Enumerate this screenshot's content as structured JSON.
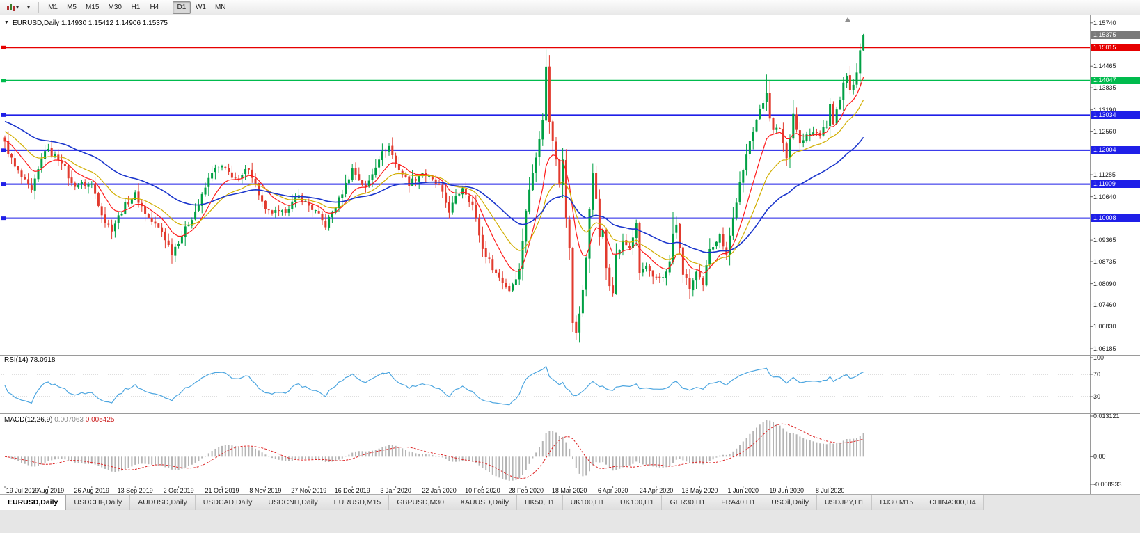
{
  "toolbar": {
    "timeframes": [
      "M1",
      "M5",
      "M15",
      "M30",
      "H1",
      "H4",
      "D1",
      "W1",
      "MN"
    ],
    "active_timeframe": "D1",
    "dropdown_caret": "▾"
  },
  "main_chart": {
    "collapse_glyph": "▼",
    "title": "EURUSD,Daily 1.14930 1.15412 1.14906 1.15375"
  },
  "rsi_panel": {
    "title": "RSI(14) 78.0918",
    "scale": [
      {
        "v": 100,
        "label": "100"
      },
      {
        "v": 70,
        "label": "70"
      },
      {
        "v": 30,
        "label": "30"
      }
    ]
  },
  "macd_panel": {
    "title_name": "MACD(12,26,9)",
    "main_value": "0.007063",
    "signal_value": "0.005425",
    "scale": [
      {
        "v": 0.013121,
        "label": "0.013121"
      },
      {
        "v": 0,
        "label": "0.00"
      },
      {
        "v": -0.008933,
        "label": "-0.008933"
      }
    ]
  },
  "price_scale": {
    "ticks": [
      "1.15740",
      "1.14465",
      "1.13835",
      "1.13190",
      "1.12560",
      "1.11285",
      "1.10640",
      "1.09365",
      "1.08735",
      "1.08090",
      "1.07460",
      "1.06830",
      "1.06185"
    ],
    "last_price_badge": {
      "label": "1.15375",
      "price": 1.15375,
      "color": "#7a7a7a"
    }
  },
  "hlines": [
    {
      "price": 1.15015,
      "color": "#e60000",
      "label": "1.15015"
    },
    {
      "price": 1.14047,
      "color": "#00bb4d",
      "label": "1.14047"
    },
    {
      "price": 1.13034,
      "color": "#1f1fe8",
      "label": "1.13034"
    },
    {
      "price": 1.12004,
      "color": "#1f1fe8",
      "label": "1.12004"
    },
    {
      "price": 1.11009,
      "color": "#1f1fe8",
      "label": "1.11009"
    },
    {
      "price": 1.10008,
      "color": "#1f1fe8",
      "label": "1.10008"
    }
  ],
  "time_axis": {
    "labels": [
      "19 Jul 2019",
      "7 Aug 2019",
      "26 Aug 2019",
      "13 Sep 2019",
      "2 Oct 2019",
      "21 Oct 2019",
      "8 Nov 2019",
      "27 Nov 2019",
      "16 Dec 2019",
      "3 Jan 2020",
      "22 Jan 2020",
      "10 Feb 2020",
      "28 Feb 2020",
      "18 Mar 2020",
      "6 Apr 2020",
      "24 Apr 2020",
      "13 May 2020",
      "1 Jun 2020",
      "19 Jun 2020",
      "8 Jul 2020"
    ],
    "candles_per_label": 13
  },
  "tabs": {
    "active": "EURUSD,Daily",
    "items": [
      "EURUSD,Daily",
      "USDCHF,Daily",
      "AUDUSD,Daily",
      "USDCAD,Daily",
      "USDCNH,Daily",
      "EURUSD,M15",
      "GBPUSD,M30",
      "XAUUSD,Daily",
      "HK50,H1",
      "UK100,H1",
      "UK100,H1",
      "GER30,H1",
      "FRA40,H1",
      "USOil,Daily",
      "USDJPY,H1",
      "DJ30,M15",
      "CHINA300,H4"
    ],
    "note": ""
  },
  "chart_data": {
    "type": "candlestick",
    "symbol": "EURUSD",
    "period": "Daily",
    "ylim": [
      1.06,
      1.1596
    ],
    "candle_count": 258,
    "last_ohlc": {
      "o": 1.1493,
      "h": 1.15412,
      "l": 1.14906,
      "c": 1.15375
    },
    "up_color": "#00a044",
    "down_color": "#e23a2e",
    "close_anchors": [
      [
        0,
        1.122
      ],
      [
        3,
        1.115
      ],
      [
        8,
        1.1078
      ],
      [
        12,
        1.1203
      ],
      [
        17,
        1.117
      ],
      [
        20,
        1.11
      ],
      [
        26,
        1.11
      ],
      [
        30,
        1.099
      ],
      [
        32,
        1.097
      ],
      [
        36,
        1.104
      ],
      [
        39,
        1.107
      ],
      [
        43,
        1.1
      ],
      [
        47,
        1.0962
      ],
      [
        50,
        1.09
      ],
      [
        52,
        1.0935
      ],
      [
        55,
        1.0985
      ],
      [
        58,
        1.104
      ],
      [
        62,
        1.114
      ],
      [
        65,
        1.115
      ],
      [
        70,
        1.111
      ],
      [
        73,
        1.1152
      ],
      [
        78,
        1.102
      ],
      [
        83,
        1.1015
      ],
      [
        88,
        1.1065
      ],
      [
        93,
        1.102
      ],
      [
        96,
        1.098
      ],
      [
        100,
        1.1055
      ],
      [
        104,
        1.1145
      ],
      [
        108,
        1.1087
      ],
      [
        112,
        1.118
      ],
      [
        115,
        1.1212
      ],
      [
        117,
        1.116
      ],
      [
        121,
        1.1103
      ],
      [
        125,
        1.1135
      ],
      [
        130,
        1.1093
      ],
      [
        133,
        1.1023
      ],
      [
        137,
        1.1093
      ],
      [
        140,
        1.104
      ],
      [
        143,
        1.091
      ],
      [
        147,
        1.084
      ],
      [
        151,
        1.079
      ],
      [
        154,
        1.085
      ],
      [
        156,
        1.1026
      ],
      [
        158,
        1.1135
      ],
      [
        160,
        1.124
      ],
      [
        161,
        1.1284
      ],
      [
        162,
        1.145
      ],
      [
        163,
        1.128
      ],
      [
        165,
        1.118
      ],
      [
        166,
        1.1106
      ],
      [
        167,
        1.118
      ],
      [
        168,
        1.0995
      ],
      [
        169,
        1.0915
      ],
      [
        170,
        1.069
      ],
      [
        171,
        1.0665
      ],
      [
        172,
        1.0725
      ],
      [
        173,
        1.079
      ],
      [
        174,
        1.088
      ],
      [
        175,
        1.103
      ],
      [
        176,
        1.114
      ],
      [
        177,
        1.105
      ],
      [
        178,
        1.095
      ],
      [
        179,
        1.096
      ],
      [
        180,
        1.0855
      ],
      [
        181,
        1.081
      ],
      [
        182,
        1.079
      ],
      [
        183,
        1.089
      ],
      [
        185,
        1.093
      ],
      [
        187,
        1.0915
      ],
      [
        189,
        1.098
      ],
      [
        190,
        1.084
      ],
      [
        192,
        1.086
      ],
      [
        194,
        1.0822
      ],
      [
        195,
        1.082
      ],
      [
        197,
        1.083
      ],
      [
        199,
        1.087
      ],
      [
        200,
        1.0955
      ],
      [
        201,
        1.098
      ],
      [
        203,
        1.084
      ],
      [
        205,
        1.0795
      ],
      [
        207,
        1.084
      ],
      [
        209,
        1.08
      ],
      [
        211,
        1.0915
      ],
      [
        212,
        1.0924
      ],
      [
        214,
        1.095
      ],
      [
        216,
        1.09
      ],
      [
        218,
        1.1
      ],
      [
        220,
        1.1101
      ],
      [
        221,
        1.1135
      ],
      [
        223,
        1.1235
      ],
      [
        225,
        1.129
      ],
      [
        227,
        1.134
      ],
      [
        228,
        1.1375
      ],
      [
        229,
        1.13
      ],
      [
        230,
        1.1255
      ],
      [
        232,
        1.1265
      ],
      [
        234,
        1.1177
      ],
      [
        236,
        1.1308
      ],
      [
        238,
        1.1218
      ],
      [
        240,
        1.1242
      ],
      [
        242,
        1.1251
      ],
      [
        244,
        1.1248
      ],
      [
        246,
        1.1274
      ],
      [
        247,
        1.133
      ],
      [
        248,
        1.1284
      ],
      [
        250,
        1.1344
      ],
      [
        251,
        1.14
      ],
      [
        252,
        1.141
      ],
      [
        253,
        1.1385
      ],
      [
        254,
        1.14
      ],
      [
        255,
        1.1428
      ],
      [
        256,
        1.1493
      ],
      [
        257,
        1.15375
      ]
    ],
    "wick_overrides": [
      {
        "i": 162,
        "h": 1.1495
      },
      {
        "i": 171,
        "l": 1.0645
      },
      {
        "i": 172,
        "l": 1.0636
      },
      {
        "i": 200,
        "h": 1.1019
      },
      {
        "i": 228,
        "h": 1.1422
      }
    ],
    "ma": [
      {
        "name": "fast",
        "period": 10,
        "color": "#ff1a1a",
        "seed": 1.1232
      },
      {
        "name": "medium",
        "period": 21,
        "color": "#d1ae00",
        "seed": 1.1258
      },
      {
        "name": "slow",
        "period": 48,
        "color": "#1a35cc",
        "seed": 1.1287
      }
    ],
    "rsi": {
      "period": 14,
      "color": "#4da6e0",
      "levels": [
        70,
        30
      ],
      "last_value": 78.0918
    },
    "macd": {
      "fast": 12,
      "slow": 26,
      "signal": 9,
      "hist_color": "#b4b4b4",
      "signal_color": "#dd2222",
      "last_main": 0.007063,
      "last_signal": 0.005425,
      "scale_max": 0.013121,
      "scale_min": -0.008933
    }
  }
}
